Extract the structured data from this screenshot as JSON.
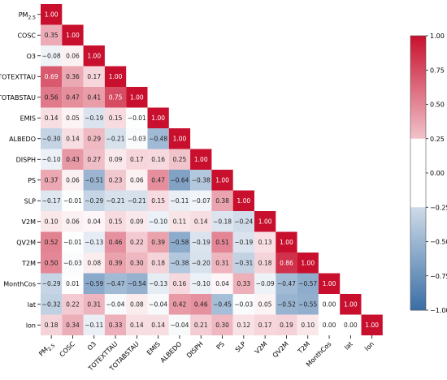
{
  "chart_data": {
    "type": "heatmap",
    "variables": [
      "PM2.5",
      "COSC",
      "O3",
      "TOTEXTTAU",
      "TOTABSTAU",
      "EMIS",
      "ALBEDO",
      "DISPH",
      "PS",
      "SLP",
      "V2M",
      "QV2M",
      "T2M",
      "MonthCos",
      "lat",
      "lon"
    ],
    "labels": [
      {
        "base": "PM",
        "sub": "2.5"
      },
      {
        "base": "COSC"
      },
      {
        "base": "O3"
      },
      {
        "base": "TOTEXTTAU"
      },
      {
        "base": "TOTABSTAU"
      },
      {
        "base": "EMIS"
      },
      {
        "base": "ALBEDO"
      },
      {
        "base": "DISPH"
      },
      {
        "base": "PS"
      },
      {
        "base": "SLP"
      },
      {
        "base": "V2M"
      },
      {
        "base": "QV2M"
      },
      {
        "base": "T2M"
      },
      {
        "base": "MonthCos"
      },
      {
        "base": "lat"
      },
      {
        "base": "lon"
      }
    ],
    "matrix": [
      [
        1.0
      ],
      [
        0.35,
        1.0
      ],
      [
        -0.08,
        0.06,
        1.0
      ],
      [
        0.69,
        0.36,
        0.17,
        1.0
      ],
      [
        0.56,
        0.47,
        0.41,
        0.75,
        1.0
      ],
      [
        0.14,
        0.05,
        -0.19,
        0.15,
        -0.01,
        1.0
      ],
      [
        -0.3,
        0.14,
        0.29,
        -0.21,
        -0.03,
        -0.48,
        1.0
      ],
      [
        -0.1,
        0.43,
        0.27,
        0.09,
        0.17,
        0.16,
        0.25,
        1.0
      ],
      [
        0.37,
        0.06,
        -0.51,
        0.23,
        0.06,
        0.47,
        -0.64,
        -0.38,
        1.0
      ],
      [
        -0.17,
        -0.01,
        -0.29,
        -0.21,
        -0.21,
        0.15,
        -0.11,
        -0.07,
        0.38,
        1.0
      ],
      [
        0.1,
        0.06,
        0.04,
        0.15,
        0.09,
        -0.1,
        0.11,
        0.14,
        -0.18,
        -0.24,
        1.0
      ],
      [
        0.52,
        -0.01,
        -0.13,
        0.46,
        0.22,
        0.39,
        -0.58,
        -0.19,
        0.51,
        -0.19,
        0.13,
        1.0
      ],
      [
        0.5,
        -0.03,
        0.08,
        0.39,
        0.3,
        0.18,
        -0.38,
        -0.2,
        0.31,
        -0.31,
        0.18,
        0.86,
        1.0
      ],
      [
        -0.29,
        0.01,
        -0.59,
        -0.47,
        -0.54,
        -0.13,
        0.16,
        -0.1,
        0.04,
        0.33,
        -0.09,
        -0.47,
        -0.57,
        1.0
      ],
      [
        -0.32,
        0.22,
        0.31,
        -0.04,
        0.08,
        -0.04,
        0.42,
        0.46,
        -0.45,
        -0.03,
        0.05,
        -0.52,
        -0.55,
        0.0,
        1.0
      ],
      [
        0.18,
        0.34,
        -0.11,
        0.33,
        0.14,
        0.14,
        -0.04,
        0.21,
        0.3,
        0.12,
        0.17,
        0.19,
        0.1,
        0.0,
        0.0,
        1.0
      ]
    ],
    "colorbar": {
      "min": -1.0,
      "max": 1.0,
      "ticks": [
        1.0,
        0.75,
        0.5,
        0.25,
        0.0,
        -0.25,
        -0.5,
        -0.75,
        -1.0
      ],
      "tick_labels": [
        "1.00",
        "0.75",
        "0.50",
        "0.25",
        "0.00",
        "−0.25",
        "−0.50",
        "−0.75",
        "−1.00"
      ],
      "blank_range": [
        -0.25,
        0.25
      ]
    },
    "colors": {
      "positive_max": "#c8102e",
      "negative_max": "#3a6ea5",
      "neutral": "#ffffff"
    },
    "value_format": "2 decimals",
    "legend_position": "right"
  }
}
